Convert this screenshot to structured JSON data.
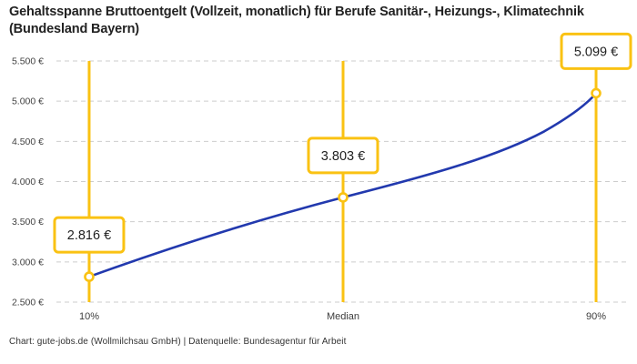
{
  "header": {
    "title": "Gehaltsspanne Bruttoentgelt (Vollzeit, monatlich) für Berufe Sanitär-, Heizungs-, Klimatechnik (Bundesland Bayern)"
  },
  "footer": {
    "credit": "Chart: gute-jobs.de (Wollmilchsau GmbH) | Datenquelle: Bundesagentur für Arbeit"
  },
  "chart_data": {
    "type": "line",
    "title": "Gehaltsspanne Bruttoentgelt (Vollzeit, monatlich) für Berufe Sanitär-, Heizungs-, Klimatechnik (Bundesland Bayern)",
    "categories": [
      "10%",
      "Median",
      "90%"
    ],
    "values": [
      2816,
      3803,
      5099
    ],
    "point_labels": [
      "2.816 €",
      "3.803 €",
      "5.099 €"
    ],
    "xlabel": "",
    "ylabel": "",
    "ylim": [
      2500,
      5500
    ],
    "yticks": {
      "values": [
        5500,
        5000,
        4500,
        4000,
        3500,
        3000,
        2500
      ],
      "labels": [
        "5.500 €",
        "5.000 €",
        "4.500 €",
        "4.000 €",
        "3.500 €",
        "3.000 €",
        "2.500 €"
      ]
    },
    "grid": "horizontal-dashed",
    "legend": "none",
    "colors": {
      "line": "#2239ae",
      "accent_yellow": "#fac213",
      "grid": "#cdcdcd",
      "marker_fill": "#ffffff",
      "label_box_bg": "#ffffff",
      "text": "#1f1f1f"
    }
  }
}
